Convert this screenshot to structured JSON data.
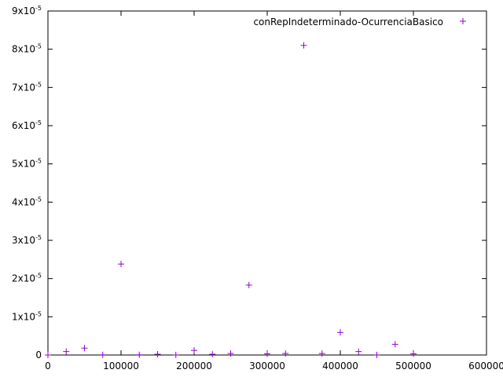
{
  "chart_data": {
    "type": "scatter",
    "title": "",
    "xlabel": "",
    "ylabel": "",
    "xlim": [
      0,
      600000
    ],
    "ylim": [
      0,
      9e-05
    ],
    "grid": false,
    "legend_position": "top-right",
    "x_ticks": [
      0,
      100000,
      200000,
      300000,
      400000,
      500000,
      600000
    ],
    "x_tick_labels": [
      "0",
      "100000",
      "200000",
      "300000",
      "400000",
      "500000",
      "600000"
    ],
    "y_ticks": [
      0,
      1e-05,
      2e-05,
      3e-05,
      4e-05,
      5e-05,
      6e-05,
      7e-05,
      8e-05,
      9e-05
    ],
    "y_tick_labels": [
      {
        "mantissa": "0",
        "exp": ""
      },
      {
        "mantissa": "1x10",
        "exp": "-5"
      },
      {
        "mantissa": "2x10",
        "exp": "-5"
      },
      {
        "mantissa": "3x10",
        "exp": "-5"
      },
      {
        "mantissa": "4x10",
        "exp": "-5"
      },
      {
        "mantissa": "5x10",
        "exp": "-5"
      },
      {
        "mantissa": "6x10",
        "exp": "-5"
      },
      {
        "mantissa": "7x10",
        "exp": "-5"
      },
      {
        "mantissa": "8x10",
        "exp": "-5"
      },
      {
        "mantissa": "9x10",
        "exp": "-5"
      }
    ],
    "series": [
      {
        "name": "conRepIndeterminado-OcurrenciaBasico",
        "color": "#9400d3",
        "marker": "plus",
        "points": [
          {
            "x": 0,
            "y": 0.0
          },
          {
            "x": 25000,
            "y": 9e-07
          },
          {
            "x": 50000,
            "y": 1.8e-06
          },
          {
            "x": 75000,
            "y": 5e-08
          },
          {
            "x": 100000,
            "y": 2.38e-05
          },
          {
            "x": 125000,
            "y": 5e-08
          },
          {
            "x": 150000,
            "y": 2e-07
          },
          {
            "x": 175000,
            "y": 2e-08
          },
          {
            "x": 200000,
            "y": 1.2e-06
          },
          {
            "x": 225000,
            "y": 2e-07
          },
          {
            "x": 250000,
            "y": 4e-07
          },
          {
            "x": 275000,
            "y": 1.83e-05
          },
          {
            "x": 300000,
            "y": 3e-07
          },
          {
            "x": 325000,
            "y": 4e-07
          },
          {
            "x": 350000,
            "y": 8.1e-05
          },
          {
            "x": 375000,
            "y": 4e-07
          },
          {
            "x": 400000,
            "y": 5.9e-06
          },
          {
            "x": 425000,
            "y": 9e-07
          },
          {
            "x": 450000,
            "y": 2e-08
          },
          {
            "x": 475000,
            "y": 2.8e-06
          },
          {
            "x": 500000,
            "y": 3e-07
          }
        ]
      }
    ]
  }
}
